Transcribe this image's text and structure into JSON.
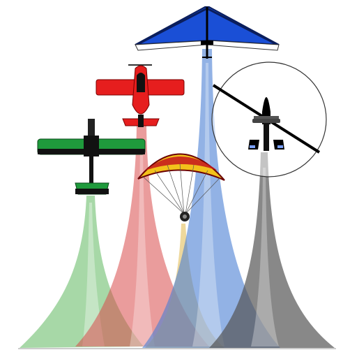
{
  "illustration": {
    "aircraft": [
      {
        "kind": "hang-glider",
        "color": "#1a4fd6",
        "trail_color": "#4a7fd4"
      },
      {
        "kind": "aerobatic-plane",
        "color": "#e61e1e",
        "trail_color": "#d94a4a"
      },
      {
        "kind": "trainer-plane",
        "color": "#1f9a3c",
        "trail_color": "#5fb85f"
      },
      {
        "kind": "paramotor",
        "color": "#f2c21b",
        "trail_color": "#e0b84a"
      },
      {
        "kind": "gyrocopter",
        "color": "#111111",
        "trail_color": "#555555"
      }
    ]
  }
}
